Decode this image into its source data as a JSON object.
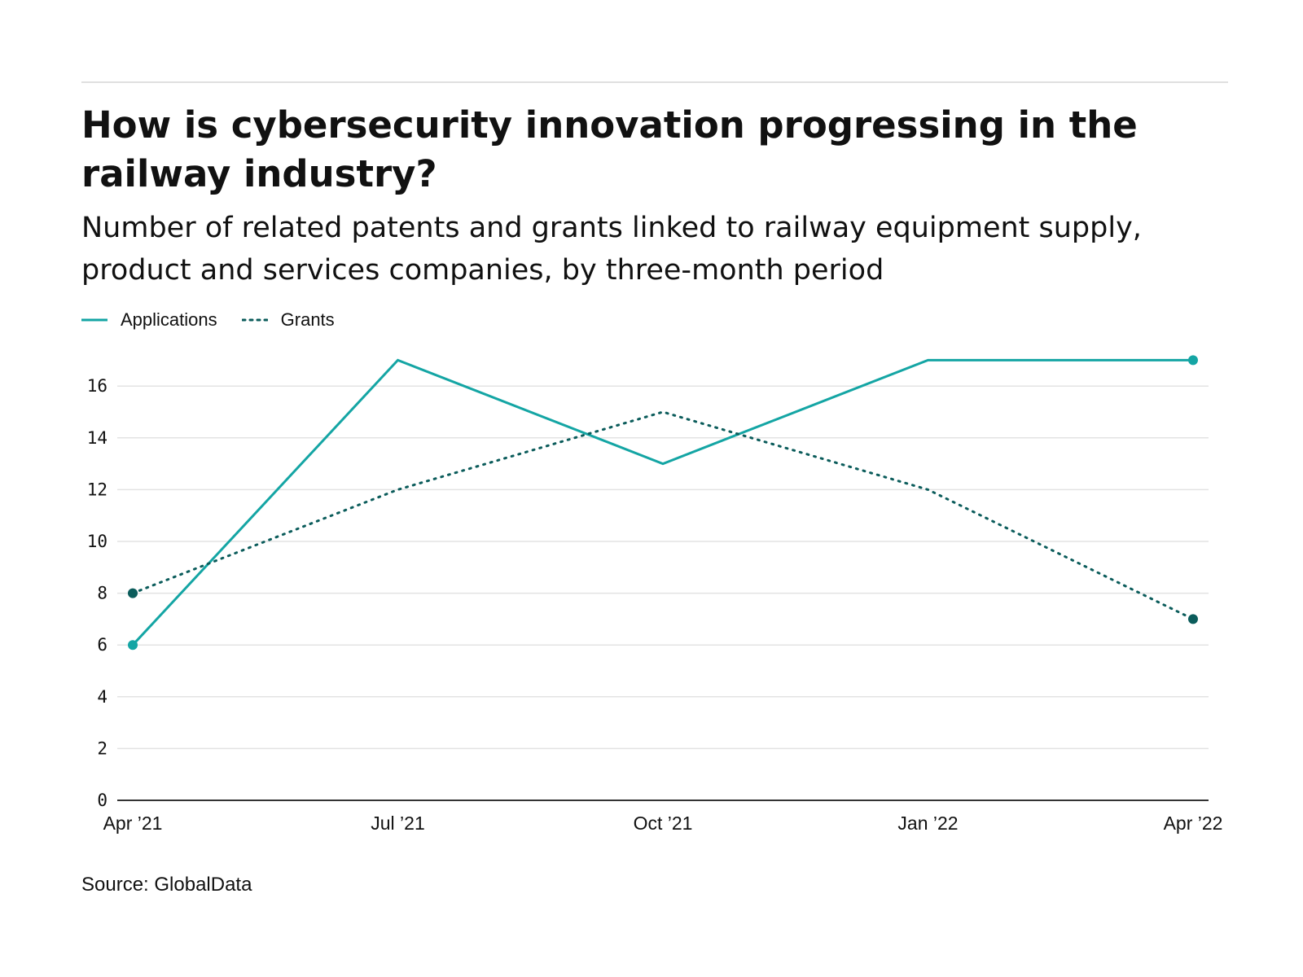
{
  "title": "How is cybersecurity innovation progressing in the railway industry?",
  "subtitle": "Number of related patents and grants linked to railway equipment supply, product and services companies, by three-month period",
  "source": "Source: GlobalData",
  "colors": {
    "applications": "#14a5a4",
    "grants": "#0b5c5b"
  },
  "chart_data": {
    "type": "line",
    "x": [
      "Apr ’21",
      "Jul ’21",
      "Oct ’21",
      "Jan ’22",
      "Apr ’22"
    ],
    "series": [
      {
        "name": "Applications",
        "values": [
          6,
          17,
          13,
          17,
          17
        ],
        "style": "solid"
      },
      {
        "name": "Grants",
        "values": [
          8,
          12,
          15,
          12,
          7
        ],
        "style": "dotted"
      }
    ],
    "yticks": [
      0,
      2,
      4,
      6,
      8,
      10,
      12,
      14,
      16
    ],
    "ylim": [
      0,
      17
    ],
    "grid": true,
    "legend": "top-left"
  }
}
